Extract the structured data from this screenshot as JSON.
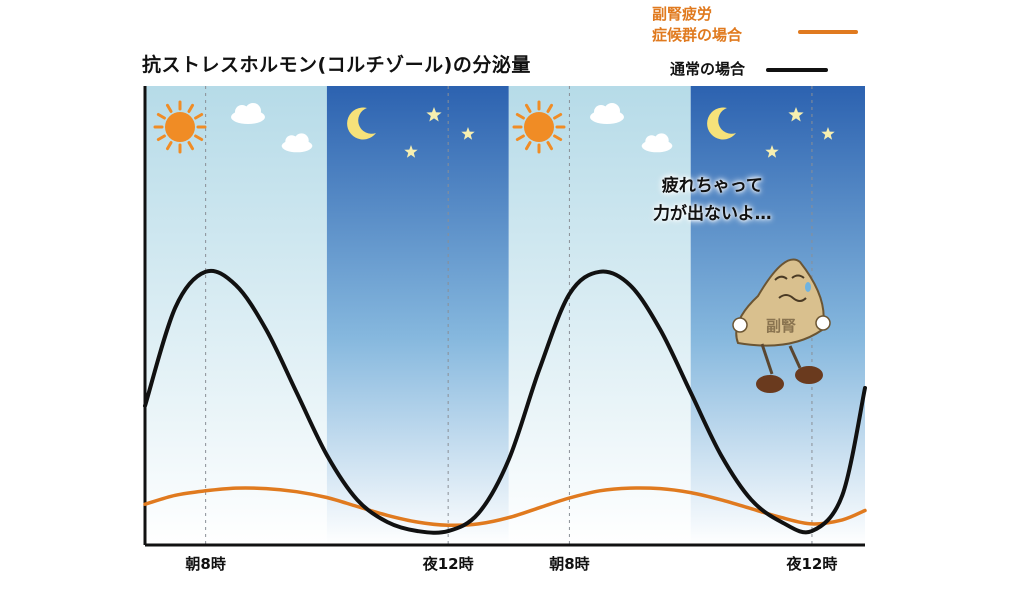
{
  "chart_data": {
    "type": "line",
    "title": "抗ストレスホルモン(コルチゾール)の分泌量",
    "x_ticks": [
      "朝8時",
      "夜12時",
      "朝8時",
      "夜12時"
    ],
    "x_tick_positions": [
      8,
      24,
      32,
      48
    ],
    "xlim": [
      4,
      51.5
    ],
    "ylim": [
      0,
      100
    ],
    "grid": false,
    "legend_position": "top-right",
    "series": [
      {
        "name": "副腎疲労\n症候群の場合",
        "color": "#e07a1f",
        "x": [
          4,
          6,
          8,
          10,
          12,
          14,
          16,
          18,
          20,
          22,
          24,
          26,
          28,
          30,
          32,
          34,
          36,
          38,
          40,
          42,
          44,
          46,
          48,
          50,
          51.5
        ],
        "y": [
          8,
          10,
          11,
          11.6,
          11.5,
          10.8,
          9.5,
          7.5,
          5.5,
          4,
          3.3,
          3.6,
          5,
          7.2,
          9.4,
          11,
          11.6,
          11.5,
          10.6,
          9,
          7,
          5,
          3.6,
          4.5,
          6.6
        ]
      },
      {
        "name": "通常の場合",
        "color": "#111111",
        "x": [
          4,
          6,
          8,
          10,
          12,
          14,
          16,
          18,
          20,
          22,
          24,
          26,
          28,
          30,
          32,
          34,
          36,
          38,
          40,
          42,
          44,
          46,
          48,
          50,
          51.5
        ],
        "y": [
          30,
          52,
          60,
          57,
          47,
          33,
          19,
          9,
          4,
          2,
          2,
          6,
          18,
          38,
          55,
          60,
          57,
          47,
          33,
          19,
          9,
          4,
          2,
          10,
          34
        ]
      }
    ],
    "bands": [
      {
        "period": "day",
        "x": [
          4,
          16
        ]
      },
      {
        "period": "night",
        "x": [
          16,
          28
        ]
      },
      {
        "period": "day",
        "x": [
          28,
          40
        ]
      },
      {
        "period": "night",
        "x": [
          40,
          51.5
        ]
      }
    ],
    "annotations": [
      {
        "text_lines": [
          "疲れちゃって",
          "力が出ないよ…"
        ],
        "near_x": 46
      }
    ],
    "character_label": "副腎"
  },
  "legend": {
    "adrenal_label_line1": "副腎疲労",
    "adrenal_label_line2": "症候群の場合",
    "normal_label": "通常の場合"
  },
  "colors": {
    "day_top": "#b6dbe8",
    "day_bottom": "#ffffff",
    "night_top": "#2c62b0",
    "night_mid": "#86b8de",
    "night_bottom": "#ffffff",
    "sun": "#f08c25",
    "moon": "#f6e27a",
    "star": "#f7efb0",
    "adrenal_line": "#e07a1f",
    "normal_line": "#111111"
  }
}
